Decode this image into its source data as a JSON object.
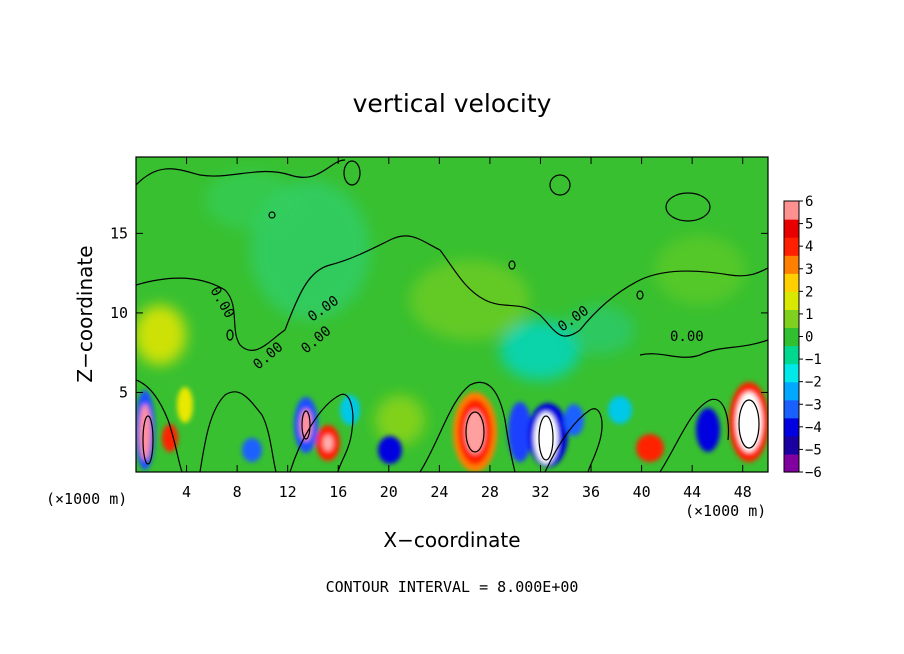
{
  "chart_data": {
    "type": "heatmap",
    "title": "vertical velocity",
    "xlabel": "X−coordinate",
    "ylabel": "Z−coordinate",
    "x_unit_left": "(×1000 m)",
    "x_unit_right": "(×1000 m)",
    "footer": "CONTOUR INTERVAL = 8.000E+00",
    "xlim": [
      0,
      50
    ],
    "ylim": [
      0,
      19.8
    ],
    "x_ticks": [
      4,
      8,
      12,
      16,
      20,
      24,
      28,
      32,
      36,
      40,
      44,
      48
    ],
    "y_ticks": [
      5,
      10,
      15
    ],
    "contour_labels": [
      "0.00",
      "0.00",
      "0.00",
      "0.00",
      "0.00",
      "0.00"
    ],
    "colorbar": {
      "ticks": [
        6,
        5,
        4,
        3,
        2,
        1,
        0,
        -1,
        -2,
        -3,
        -4,
        -5,
        -6
      ],
      "tick_labels": [
        "6",
        "5",
        "4",
        "3",
        "2",
        "1",
        "0",
        "−1",
        "−2",
        "−3",
        "−4",
        "−5",
        "−6"
      ],
      "range": [
        -6,
        6
      ],
      "colors": [
        "#8000a0",
        "#1a00a0",
        "#0000e0",
        "#1a60ff",
        "#00a8ff",
        "#00e8e8",
        "#00d890",
        "#30c030",
        "#80d020",
        "#d8e800",
        "#ffd000",
        "#ff8000",
        "#ff2000",
        "#e80000",
        "#ff9090"
      ]
    },
    "features": [
      {
        "x": 0.8,
        "z": 2.2,
        "value": -5.5,
        "kind": "downdraft core"
      },
      {
        "x": 2.8,
        "z": 2.0,
        "value": 4.0,
        "kind": "updraft"
      },
      {
        "x": 13.5,
        "z": 3.0,
        "value": -5.0,
        "kind": "downdraft core"
      },
      {
        "x": 15.3,
        "z": 1.8,
        "value": 4.5,
        "kind": "updraft"
      },
      {
        "x": 19.5,
        "z": 1.6,
        "value": -4.0,
        "kind": "downdraft"
      },
      {
        "x": 26.6,
        "z": 2.6,
        "value": 5.5,
        "kind": "updraft core"
      },
      {
        "x": 30.2,
        "z": 2.6,
        "value": -5.0,
        "kind": "downdraft core"
      },
      {
        "x": 32.2,
        "z": 2.2,
        "value": -6.0,
        "kind": "downdraft core"
      },
      {
        "x": 40.2,
        "z": 1.6,
        "value": 4.0,
        "kind": "updraft"
      },
      {
        "x": 45.0,
        "z": 3.0,
        "value": -4.0,
        "kind": "downdraft"
      },
      {
        "x": 48.3,
        "z": 3.0,
        "value": 6.0,
        "kind": "updraft core"
      },
      {
        "x": 2.0,
        "z": 8.5,
        "value": 2.0,
        "kind": "weak updraft"
      },
      {
        "x": 12.5,
        "z": 11.5,
        "value": -1.5,
        "kind": "weak downdraft"
      },
      {
        "x": 30.0,
        "z": 8.5,
        "value": -1.8,
        "kind": "weak downdraft"
      }
    ]
  }
}
